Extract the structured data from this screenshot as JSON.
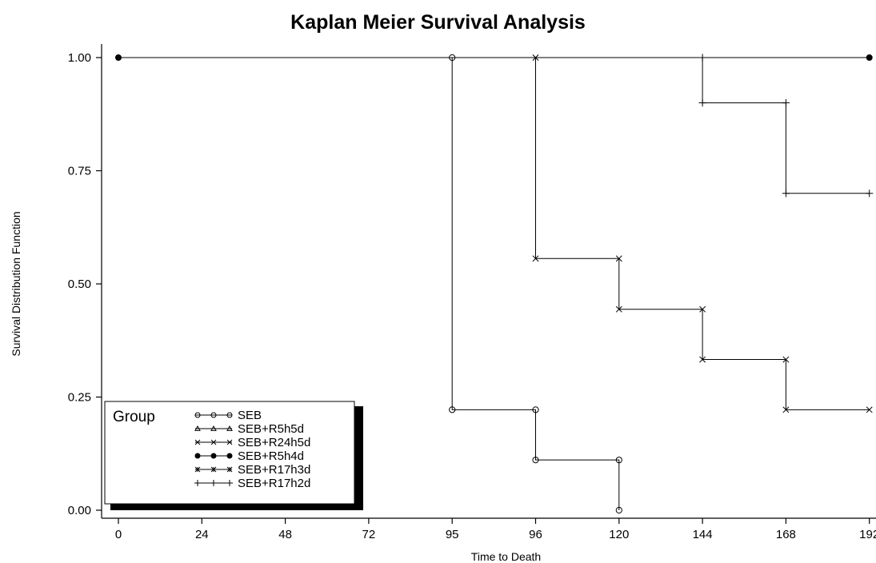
{
  "chart_data": {
    "type": "line",
    "step": true,
    "title": "Kaplan Meier Survival Analysis",
    "xlabel": "Time to Death",
    "ylabel": "Survival Distribution Function",
    "x_ticks": [
      "0",
      "24",
      "48",
      "72",
      "95",
      "96",
      "120",
      "144",
      "168",
      "192"
    ],
    "y_ticks": [
      "0.00",
      "0.25",
      "0.50",
      "0.75",
      "1.00"
    ],
    "ylim": [
      0,
      1
    ],
    "x_scale": "ordinal",
    "legend": {
      "title": "Group",
      "position": "bottom-left"
    },
    "series": [
      {
        "name": "SEB",
        "marker": "circle",
        "points": [
          {
            "x": "0",
            "y": 1.0
          },
          {
            "x": "95",
            "y": 1.0
          },
          {
            "x": "95",
            "y": 0.222
          },
          {
            "x": "96",
            "y": 0.222
          },
          {
            "x": "96",
            "y": 0.111
          },
          {
            "x": "120",
            "y": 0.111
          },
          {
            "x": "120",
            "y": 0.0
          }
        ],
        "markers_at": [
          {
            "x": "95",
            "y": 1.0
          },
          {
            "x": "95",
            "y": 0.222
          },
          {
            "x": "96",
            "y": 0.222
          },
          {
            "x": "96",
            "y": 0.111
          },
          {
            "x": "120",
            "y": 0.111
          },
          {
            "x": "120",
            "y": 0.0
          }
        ]
      },
      {
        "name": "SEB+R5h5d",
        "marker": "triangle",
        "points": [],
        "markers_at": []
      },
      {
        "name": "SEB+R24h5d",
        "marker": "x",
        "points": [
          {
            "x": "96",
            "y": 1.0
          },
          {
            "x": "96",
            "y": 0.556
          },
          {
            "x": "120",
            "y": 0.556
          },
          {
            "x": "120",
            "y": 0.444
          },
          {
            "x": "144",
            "y": 0.444
          },
          {
            "x": "144",
            "y": 0.333
          },
          {
            "x": "168",
            "y": 0.333
          },
          {
            "x": "168",
            "y": 0.222
          },
          {
            "x": "192",
            "y": 0.222
          }
        ],
        "markers_at": [
          {
            "x": "96",
            "y": 1.0
          },
          {
            "x": "96",
            "y": 0.556
          },
          {
            "x": "120",
            "y": 0.556
          },
          {
            "x": "120",
            "y": 0.444
          },
          {
            "x": "144",
            "y": 0.444
          },
          {
            "x": "144",
            "y": 0.333
          },
          {
            "x": "168",
            "y": 0.333
          },
          {
            "x": "168",
            "y": 0.222
          },
          {
            "x": "192",
            "y": 0.222
          }
        ]
      },
      {
        "name": "SEB+R5h4d",
        "marker": "filled-circle",
        "points": [
          {
            "x": "0",
            "y": 1.0
          },
          {
            "x": "192",
            "y": 1.0
          }
        ],
        "markers_at": [
          {
            "x": "0",
            "y": 1.0
          },
          {
            "x": "192",
            "y": 1.0
          }
        ]
      },
      {
        "name": "SEB+R17h3d",
        "marker": "star",
        "points": [],
        "markers_at": []
      },
      {
        "name": "SEB+R17h2d",
        "marker": "plus",
        "points": [
          {
            "x": "144",
            "y": 1.0
          },
          {
            "x": "144",
            "y": 0.9
          },
          {
            "x": "168",
            "y": 0.9
          },
          {
            "x": "168",
            "y": 0.7
          },
          {
            "x": "192",
            "y": 0.7
          }
        ],
        "markers_at": [
          {
            "x": "144",
            "y": 1.0
          },
          {
            "x": "144",
            "y": 0.9
          },
          {
            "x": "168",
            "y": 0.9
          },
          {
            "x": "168",
            "y": 0.7
          },
          {
            "x": "192",
            "y": 0.7
          }
        ]
      }
    ],
    "colors": {
      "line": "#000000",
      "background": "#ffffff"
    }
  }
}
